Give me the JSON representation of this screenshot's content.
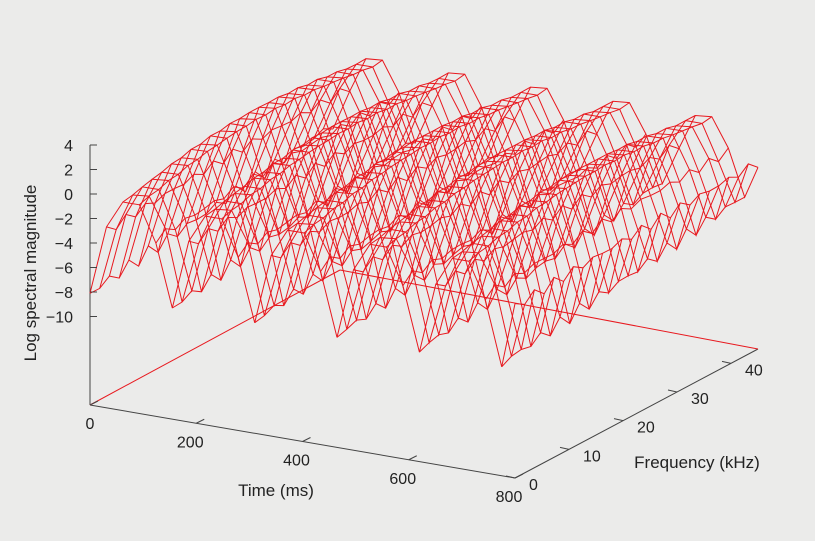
{
  "chart_data": {
    "type": "surface",
    "title": "",
    "xlabel": "Time (ms)",
    "ylabel": "Frequency (kHz)",
    "zlabel": "Log spectral magnitude",
    "x_ticks": [
      "0",
      "200",
      "400",
      "600",
      "800"
    ],
    "y_ticks": [
      "0",
      "10",
      "20",
      "30",
      "40"
    ],
    "z_ticks": [
      "4",
      "2",
      "0",
      "−2",
      "−4",
      "−6",
      "−8",
      "−10"
    ],
    "xlim": [
      0,
      800
    ],
    "ylim": [
      0,
      45
    ],
    "zlim": [
      -10,
      4
    ],
    "time_frames_ms": [
      0,
      31,
      62,
      93,
      124,
      155,
      186,
      217,
      248,
      279,
      310,
      341,
      372,
      403,
      434,
      465,
      496,
      527,
      558,
      589,
      620,
      651,
      682,
      713,
      744,
      775,
      800
    ],
    "frequency_bins_khz": [
      0,
      1.8,
      3.6,
      5.4,
      7.2,
      9,
      10.8,
      12.6,
      14.4,
      16.2,
      18,
      19.8,
      21.6,
      23.4,
      25.2,
      27,
      28.8,
      30.6,
      32.4,
      34.2,
      36,
      37.8,
      39.6,
      41.4,
      43.2,
      45
    ],
    "surface_description": "Log spectral magnitude surface: periodic bursts along time with ridges near 3-4 at high magnitude, valleys dropping to about -10 at burst boundaries, and lower magnitude (about -4 to -6) toward low frequencies.",
    "grid": false,
    "colors": {
      "surface": "#e8191f",
      "axes": "#444444",
      "background": "#ebebea"
    }
  }
}
